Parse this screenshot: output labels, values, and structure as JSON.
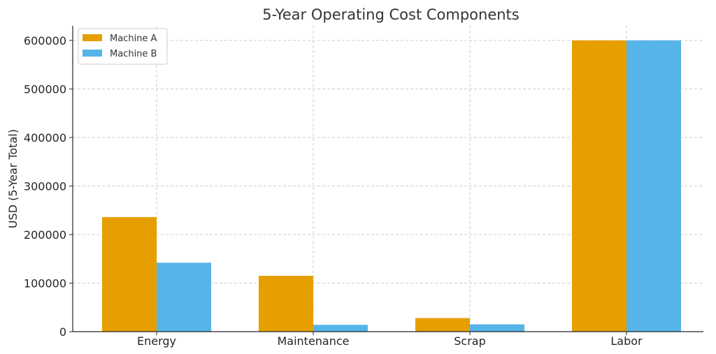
{
  "chart_data": {
    "type": "bar",
    "title": "5-Year Operating Cost Components",
    "xlabel": "",
    "ylabel": "USD (5-Year Total)",
    "categories": [
      "Energy",
      "Maintenance",
      "Scrap",
      "Labor"
    ],
    "series": [
      {
        "name": "Machine A",
        "color": "#E69F00",
        "values": [
          236000,
          115000,
          28000,
          600000
        ]
      },
      {
        "name": "Machine B",
        "color": "#56B4E9",
        "values": [
          142000,
          14000,
          15000,
          600000
        ]
      }
    ],
    "ylim": [
      0,
      630000
    ],
    "yticks": [
      0,
      100000,
      200000,
      300000,
      400000,
      500000,
      600000
    ],
    "ytick_labels": [
      "0",
      "100000",
      "200000",
      "300000",
      "400000",
      "500000",
      "600000"
    ],
    "grid": true,
    "legend_position": "top-left"
  }
}
